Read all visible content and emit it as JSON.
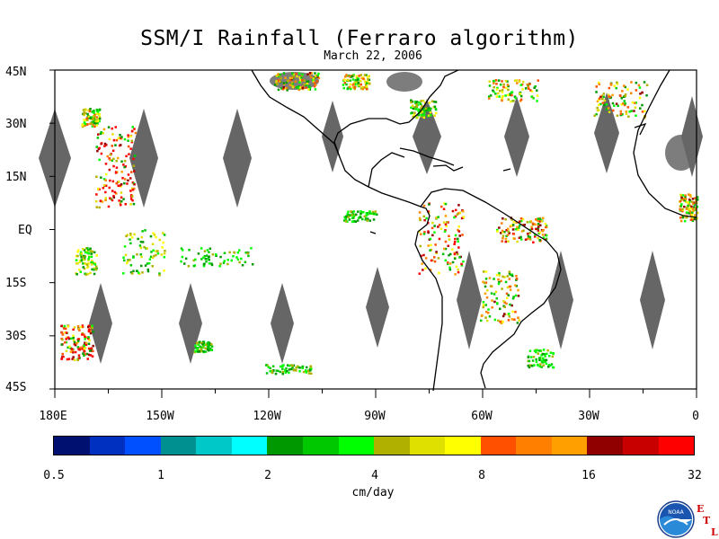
{
  "title": "SSM/I Rainfall (Ferraro algorithm)",
  "subtitle": "March 22, 2006",
  "lat_labels": [
    "45N",
    "30N",
    "15N",
    "EQ",
    "15S",
    "30S",
    "45S"
  ],
  "lon_labels": [
    "180E",
    "150W",
    "120W",
    "90W",
    "60W",
    "30W",
    "0"
  ],
  "colorbar": {
    "unit": "cm/day",
    "tick_labels": [
      "0.5",
      "1",
      "2",
      "4",
      "8",
      "16",
      "32"
    ],
    "colors": [
      "#001070",
      "#0030c0",
      "#0050ff",
      "#009090",
      "#00c8c8",
      "#00ffff",
      "#009800",
      "#00c800",
      "#00ff00",
      "#b0b000",
      "#e0e000",
      "#ffff00",
      "#ff5000",
      "#ff8000",
      "#ffa000",
      "#900000",
      "#c80000",
      "#ff0000"
    ]
  },
  "logo": {
    "name": "NOAA",
    "letters": [
      "E",
      "T",
      "L"
    ]
  },
  "colors": {
    "gap": "#666666",
    "coast": "#000000"
  }
}
